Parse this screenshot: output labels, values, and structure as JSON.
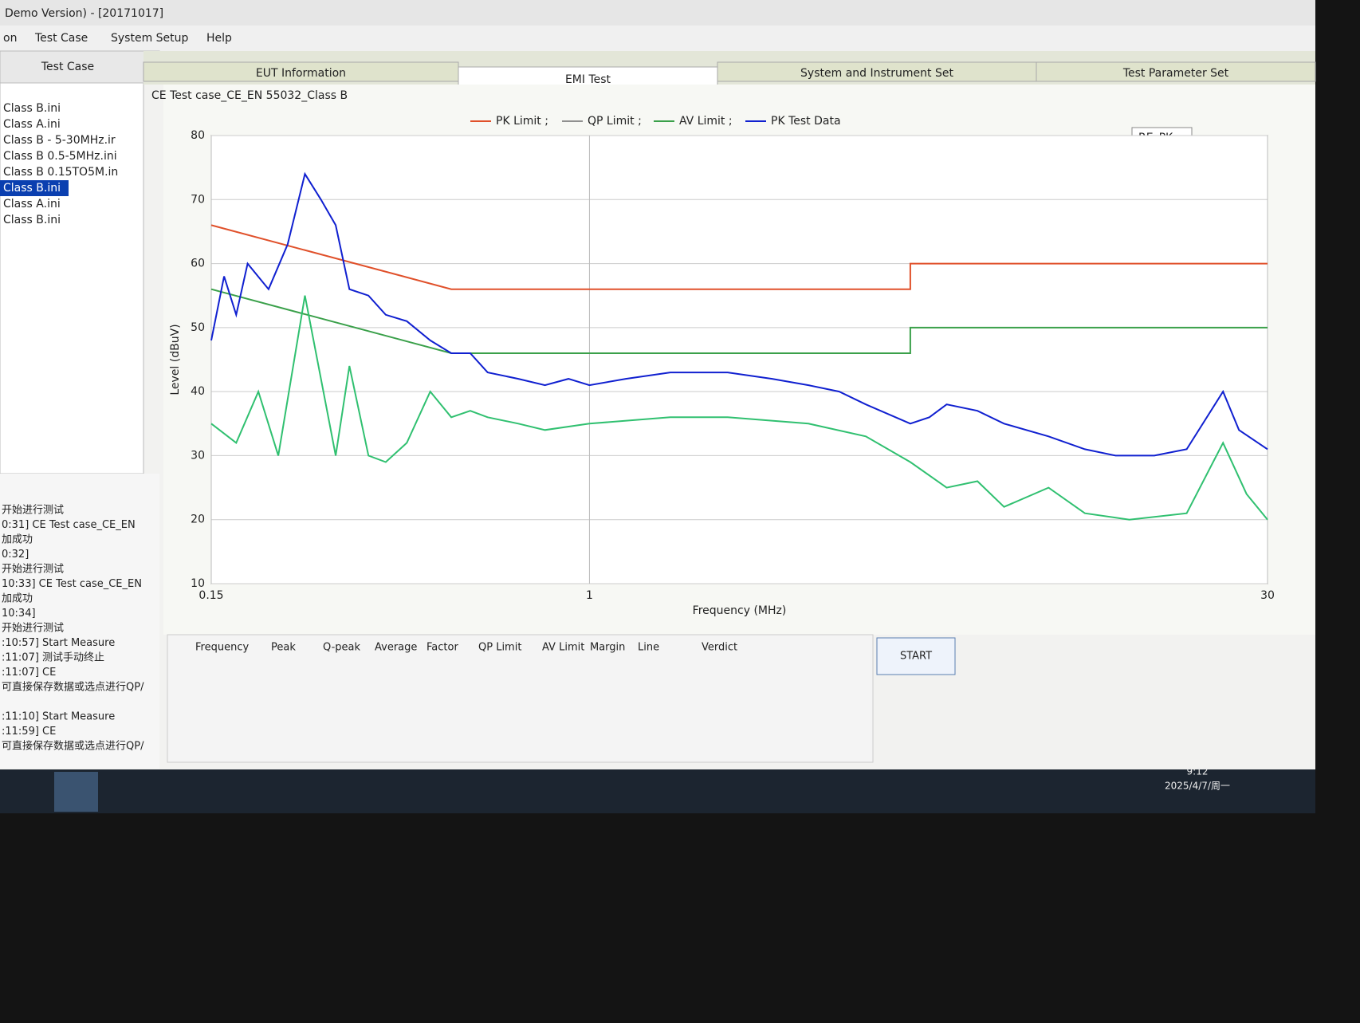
{
  "window": {
    "title": "Demo Version) - [20171017]",
    "menu": [
      "on",
      "Test Case",
      "System Setup",
      "Help"
    ]
  },
  "left_panel": {
    "header": "Test Case",
    "files": [
      "Class B.ini",
      "Class A.ini",
      "Class B - 5-30MHz.ir",
      "Class B 0.5-5MHz.ini",
      "Class B 0.15TO5M.in",
      "Class B.ini",
      "Class A.ini",
      "Class B.ini"
    ],
    "selected": 5,
    "log": [
      "开始进行测试",
      "0:31] CE Test case_CE_EN",
      "加成功",
      "0:32]",
      "开始进行测试",
      "10:33] CE Test case_CE_EN",
      "加成功",
      "10:34]",
      "开始进行测试",
      ":10:57] Start Measure",
      ":11:07] 测试手动终止",
      ":11:07] CE",
      "可直接保存数据或选点进行QP/",
      "",
      ":11:10] Start Measure",
      ":11:59] CE",
      "可直接保存数据或选点进行QP/"
    ]
  },
  "tabs": [
    "EUT Information",
    "EMI Test",
    "System and Instrument Set",
    "Test Parameter Set"
  ],
  "active_tab": 1,
  "mode_select": "RE_PK",
  "chart_data": {
    "type": "line",
    "title": "CE Test case_CE_EN 55032_Class B",
    "x_label": "Frequency (MHz)",
    "y_label": "Level (dBuV)",
    "xlim": [
      0.15,
      30
    ],
    "xticks": [
      0.15,
      1,
      30
    ],
    "x_log": true,
    "ylim": [
      10,
      80
    ],
    "yticks": [
      10,
      20,
      30,
      40,
      50,
      60,
      70,
      80
    ],
    "grid": true,
    "series": [
      {
        "name": "PK Limit ;",
        "color": "#e0502a",
        "x": [
          0.15,
          0.5,
          5,
          5,
          30
        ],
        "values": [
          66,
          56,
          56,
          60,
          60
        ]
      },
      {
        "name": "QP Limit ;",
        "color": "#909090",
        "x": [],
        "values": []
      },
      {
        "name": "AV Limit ;",
        "color": "#3aa04a",
        "x": [
          0.15,
          0.5,
          5,
          5,
          30
        ],
        "values": [
          56,
          46,
          46,
          50,
          50
        ]
      },
      {
        "name": "PK Test Data",
        "color": "#1020d0",
        "x": [
          0.15,
          0.16,
          0.17,
          0.18,
          0.2,
          0.22,
          0.24,
          0.26,
          0.28,
          0.3,
          0.33,
          0.36,
          0.4,
          0.45,
          0.5,
          0.55,
          0.6,
          0.7,
          0.8,
          0.9,
          1,
          1.2,
          1.5,
          2,
          2.5,
          3,
          3.5,
          4,
          5,
          5.5,
          6,
          7,
          8,
          10,
          12,
          14,
          17,
          20,
          24,
          26,
          30
        ],
        "values": [
          48,
          58,
          52,
          60,
          56,
          63,
          74,
          70,
          66,
          56,
          55,
          52,
          51,
          48,
          46,
          46,
          43,
          42,
          41,
          42,
          41,
          42,
          43,
          43,
          42,
          41,
          40,
          38,
          35,
          36,
          38,
          37,
          35,
          33,
          31,
          30,
          30,
          31,
          40,
          34,
          31
        ]
      },
      {
        "color": "#30c070",
        "x": [
          0.15,
          0.17,
          0.19,
          0.21,
          0.24,
          0.26,
          0.28,
          0.3,
          0.33,
          0.36,
          0.4,
          0.45,
          0.5,
          0.55,
          0.6,
          0.7,
          0.8,
          1,
          1.5,
          2,
          3,
          4,
          5,
          6,
          7,
          8,
          10,
          12,
          15,
          20,
          24,
          27,
          30
        ],
        "values": [
          35,
          32,
          40,
          30,
          55,
          42,
          30,
          44,
          30,
          29,
          32,
          40,
          36,
          37,
          36,
          35,
          34,
          35,
          36,
          36,
          35,
          33,
          29,
          25,
          26,
          22,
          25,
          21,
          20,
          21,
          32,
          24,
          20
        ]
      }
    ]
  },
  "result_table": {
    "columns": [
      "Frequency",
      "Peak",
      "Q-peak",
      "Average",
      "Factor",
      "QP Limit",
      "AV Limit",
      "Margin",
      "Line",
      "Verdict"
    ]
  },
  "start_button": "START",
  "taskbar": {
    "time": "9:12",
    "date": "2025/4/7/周一"
  }
}
